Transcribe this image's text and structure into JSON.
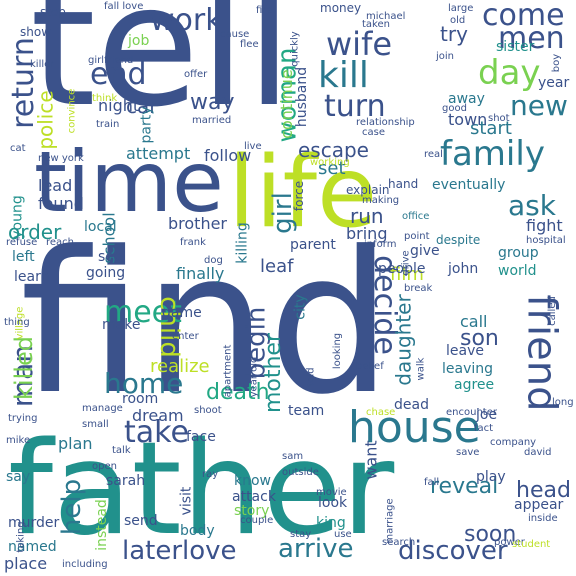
{
  "words": [
    {
      "text": "find",
      "color": "#3b528b"
    },
    {
      "text": "tell",
      "color": "#3b528b"
    },
    {
      "text": "father",
      "color": "#21918c"
    },
    {
      "text": "life",
      "color": "#bddf26"
    },
    {
      "text": "time",
      "color": "#3b528b"
    },
    {
      "text": "house",
      "color": "#2a788e"
    },
    {
      "text": "friend",
      "color": "#3b528b"
    },
    {
      "text": "family",
      "color": "#2a788e"
    },
    {
      "text": "kill",
      "color": "#2a788e"
    },
    {
      "text": "day",
      "color": "#7ad151"
    },
    {
      "text": "come",
      "color": "#3b528b"
    },
    {
      "text": "men",
      "color": "#3b528b"
    },
    {
      "text": "wife",
      "color": "#3b528b"
    },
    {
      "text": "work",
      "color": "#3b528b"
    },
    {
      "text": "end",
      "color": "#3b528b"
    },
    {
      "text": "new",
      "color": "#2a788e"
    },
    {
      "text": "turn",
      "color": "#3b528b"
    },
    {
      "text": "return",
      "color": "#3b528b"
    },
    {
      "text": "woman",
      "color": "#22a884"
    },
    {
      "text": "man",
      "color": "#3b528b"
    },
    {
      "text": "meet",
      "color": "#22a884"
    },
    {
      "text": "ask",
      "color": "#2a788e"
    },
    {
      "text": "take",
      "color": "#3b528b"
    },
    {
      "text": "decide",
      "color": "#3b528b"
    },
    {
      "text": "home",
      "color": "#2a788e"
    },
    {
      "text": "killed",
      "color": "#7ad151"
    },
    {
      "text": "child",
      "color": "#bddf26"
    },
    {
      "text": "girl",
      "color": "#2a788e"
    },
    {
      "text": "begin",
      "color": "#3b528b"
    },
    {
      "text": "help",
      "color": "#2a788e"
    },
    {
      "text": "discover",
      "color": "#3b528b"
    },
    {
      "text": "arrive",
      "color": "#2a788e"
    },
    {
      "text": "laterlove",
      "color": "#3b528b"
    },
    {
      "text": "mother",
      "color": "#21918c"
    },
    {
      "text": "police",
      "color": "#bddf26"
    },
    {
      "text": "car",
      "color": "#3b528b"
    },
    {
      "text": "way",
      "color": "#3b528b"
    },
    {
      "text": "escape",
      "color": "#3b528b"
    },
    {
      "text": "order",
      "color": "#21918c"
    },
    {
      "text": "daughter",
      "color": "#2a788e"
    },
    {
      "text": "son",
      "color": "#3b528b"
    },
    {
      "text": "death",
      "color": "#22a884"
    },
    {
      "text": "soon",
      "color": "#3b528b"
    },
    {
      "text": "reveal",
      "color": "#2a788e"
    },
    {
      "text": "head",
      "color": "#3b528b"
    },
    {
      "text": "start",
      "color": "#2a788e"
    },
    {
      "text": "try",
      "color": "#3b528b"
    },
    {
      "text": "film",
      "color": "#bddf26"
    },
    {
      "text": "night",
      "color": "#3b528b"
    },
    {
      "text": "run",
      "color": "#3b528b"
    },
    {
      "text": "set",
      "color": "#2a788e"
    },
    {
      "text": "bring",
      "color": "#3b528b"
    },
    {
      "text": "leaf",
      "color": "#3b528b"
    },
    {
      "text": "lead",
      "color": "#3b528b"
    },
    {
      "text": "found",
      "color": "#3b528b"
    },
    {
      "text": "school",
      "color": "#2a788e"
    },
    {
      "text": "brother",
      "color": "#3b528b"
    },
    {
      "text": "follow",
      "color": "#3b528b"
    },
    {
      "text": "attempt",
      "color": "#2a788e"
    },
    {
      "text": "party",
      "color": "#2a788e"
    },
    {
      "text": "job",
      "color": "#7ad151"
    },
    {
      "text": "continue",
      "color": "#7ad151"
    },
    {
      "text": "husband",
      "color": "#3b528b"
    },
    {
      "text": "town",
      "color": "#3b528b"
    },
    {
      "text": "away",
      "color": "#2a788e"
    },
    {
      "text": "sister",
      "color": "#21918c"
    },
    {
      "text": "year",
      "color": "#3b528b"
    },
    {
      "text": "eventually",
      "color": "#2a788e"
    },
    {
      "text": "fight",
      "color": "#3b528b"
    },
    {
      "text": "group",
      "color": "#2a788e"
    },
    {
      "text": "world",
      "color": "#21918c"
    },
    {
      "text": "john",
      "color": "#3b528b"
    },
    {
      "text": "people",
      "color": "#3b528b"
    },
    {
      "text": "give",
      "color": "#3b528b"
    },
    {
      "text": "parent",
      "color": "#3b528b"
    },
    {
      "text": "city",
      "color": "#2a788e"
    },
    {
      "text": "killing",
      "color": "#2a788e"
    },
    {
      "text": "finally",
      "color": "#2a788e"
    },
    {
      "text": "going",
      "color": "#3b528b"
    },
    {
      "text": "see",
      "color": "#3b528b"
    },
    {
      "text": "local",
      "color": "#2a788e"
    },
    {
      "text": "learn",
      "color": "#3b528b"
    },
    {
      "text": "left",
      "color": "#2a788e"
    },
    {
      "text": "young",
      "color": "#21918c"
    },
    {
      "text": "game",
      "color": "#3b528b"
    },
    {
      "text": "make",
      "color": "#3b528b"
    },
    {
      "text": "realize",
      "color": "#bddf26"
    },
    {
      "text": "room",
      "color": "#3b528b"
    },
    {
      "text": "dream",
      "color": "#3b528b"
    },
    {
      "text": "face",
      "color": "#3b528b"
    },
    {
      "text": "plan",
      "color": "#2a788e"
    },
    {
      "text": "team",
      "color": "#3b528b"
    },
    {
      "text": "dead",
      "color": "#3b528b"
    },
    {
      "text": "joe",
      "color": "#3b528b"
    },
    {
      "text": "call",
      "color": "#2a788e"
    },
    {
      "text": "leave",
      "color": "#3b528b"
    },
    {
      "text": "leaving",
      "color": "#2a788e"
    },
    {
      "text": "agree",
      "color": "#21918c"
    },
    {
      "text": "want",
      "color": "#3b528b"
    },
    {
      "text": "play",
      "color": "#3b528b"
    },
    {
      "text": "appear",
      "color": "#3b528b"
    },
    {
      "text": "sarah",
      "color": "#3b528b"
    },
    {
      "text": "say",
      "color": "#2a788e"
    },
    {
      "text": "murder",
      "color": "#3b528b"
    },
    {
      "text": "named",
      "color": "#2a788e"
    },
    {
      "text": "place",
      "color": "#3b528b"
    },
    {
      "text": "instead",
      "color": "#7ad151"
    },
    {
      "text": "visit",
      "color": "#3b528b"
    },
    {
      "text": "body",
      "color": "#2a788e"
    },
    {
      "text": "send",
      "color": "#3b528b"
    },
    {
      "text": "attack",
      "color": "#3b528b"
    },
    {
      "text": "know",
      "color": "#2a788e"
    },
    {
      "text": "story",
      "color": "#7ad151"
    },
    {
      "text": "king",
      "color": "#21918c"
    },
    {
      "text": "look",
      "color": "#3b528b"
    },
    {
      "text": "stop",
      "color": "#3b528b"
    },
    {
      "text": "show",
      "color": "#3b528b"
    },
    {
      "text": "money",
      "color": "#3b528b"
    },
    {
      "text": "force",
      "color": "#3b528b"
    },
    {
      "text": "hand",
      "color": "#3b528b"
    },
    {
      "text": "explain",
      "color": "#3b528b"
    },
    {
      "text": "making",
      "color": "#3b528b"
    },
    {
      "text": "working",
      "color": "#bddf26"
    },
    {
      "text": "inform",
      "color": "#3b528b"
    },
    {
      "text": "office",
      "color": "#2a788e"
    },
    {
      "text": "point",
      "color": "#3b528b"
    },
    {
      "text": "despite",
      "color": "#2a788e"
    },
    {
      "text": "hospital",
      "color": "#3b528b"
    },
    {
      "text": "break",
      "color": "#3b528b"
    },
    {
      "text": "called",
      "color": "#3b528b"
    },
    {
      "text": "long",
      "color": "#3b528b"
    },
    {
      "text": "fact",
      "color": "#3b528b"
    },
    {
      "text": "company",
      "color": "#3b528b"
    },
    {
      "text": "save",
      "color": "#3b528b"
    },
    {
      "text": "fall",
      "color": "#3b528b"
    },
    {
      "text": "david",
      "color": "#3b528b"
    },
    {
      "text": "inside",
      "color": "#3b528b"
    },
    {
      "text": "power",
      "color": "#3b528b"
    },
    {
      "text": "student",
      "color": "#bddf26"
    },
    {
      "text": "search",
      "color": "#3b528b"
    },
    {
      "text": "marriage",
      "color": "#3b528b"
    },
    {
      "text": "use",
      "color": "#3b528b"
    },
    {
      "text": "stay",
      "color": "#3b528b"
    },
    {
      "text": "couple",
      "color": "#3b528b"
    },
    {
      "text": "movie",
      "color": "#3b528b"
    },
    {
      "text": "outside",
      "color": "#3b528b"
    },
    {
      "text": "sam",
      "color": "#3b528b"
    },
    {
      "text": "ray",
      "color": "#3b528b"
    },
    {
      "text": "open",
      "color": "#3b528b"
    },
    {
      "text": "talk",
      "color": "#3b528b"
    },
    {
      "text": "taking",
      "color": "#3b528b"
    },
    {
      "text": "including",
      "color": "#3b528b"
    },
    {
      "text": "mike",
      "color": "#3b528b"
    },
    {
      "text": "trying",
      "color": "#3b528b"
    },
    {
      "text": "manage",
      "color": "#3b528b"
    },
    {
      "text": "small",
      "color": "#3b528b"
    },
    {
      "text": "shoot",
      "color": "#3b528b"
    },
    {
      "text": "apartment",
      "color": "#3b528b"
    },
    {
      "text": "year old",
      "color": "#3b528b"
    },
    {
      "text": "told",
      "color": "#3b528b"
    },
    {
      "text": "looking",
      "color": "#3b528b"
    },
    {
      "text": "belief",
      "color": "#3b528b"
    },
    {
      "text": "encounter",
      "color": "#3b528b"
    },
    {
      "text": "chase",
      "color": "#bddf26"
    },
    {
      "text": "walk",
      "color": "#3b528b"
    },
    {
      "text": "drive",
      "color": "#3b528b"
    },
    {
      "text": "enter",
      "color": "#3b528b"
    },
    {
      "text": "dog",
      "color": "#3b528b"
    },
    {
      "text": "frank",
      "color": "#3b528b"
    },
    {
      "text": "reach",
      "color": "#3b528b"
    },
    {
      "text": "refuse",
      "color": "#3b528b"
    },
    {
      "text": "village",
      "color": "#bddf26"
    },
    {
      "text": "thing",
      "color": "#3b528b"
    },
    {
      "text": "new york",
      "color": "#3b528b"
    },
    {
      "text": "cat",
      "color": "#3b528b"
    },
    {
      "text": "train",
      "color": "#3b528b"
    },
    {
      "text": "convince",
      "color": "#bddf26"
    },
    {
      "text": "think",
      "color": "#bddf26"
    },
    {
      "text": "girlfriend",
      "color": "#3b528b"
    },
    {
      "text": "killer",
      "color": "#3b528b"
    },
    {
      "text": "offer",
      "color": "#3b528b"
    },
    {
      "text": "married",
      "color": "#3b528b"
    },
    {
      "text": "live",
      "color": "#3b528b"
    },
    {
      "text": "cause",
      "color": "#3b528b"
    },
    {
      "text": "flee",
      "color": "#3b528b"
    },
    {
      "text": "fire",
      "color": "#3b528b"
    },
    {
      "text": "quickly",
      "color": "#3b528b"
    },
    {
      "text": "taken",
      "color": "#3b528b"
    },
    {
      "text": "michael",
      "color": "#3b528b"
    },
    {
      "text": "join",
      "color": "#3b528b"
    },
    {
      "text": "old",
      "color": "#3b528b"
    },
    {
      "text": "large",
      "color": "#3b528b"
    },
    {
      "text": "good",
      "color": "#3b528b"
    },
    {
      "text": "boy",
      "color": "#3b528b"
    },
    {
      "text": "case",
      "color": "#3b528b"
    },
    {
      "text": "relationship",
      "color": "#3b528b"
    },
    {
      "text": "shot",
      "color": "#3b528b"
    },
    {
      "text": "real",
      "color": "#3b528b"
    },
    {
      "text": "fall love",
      "color": "#3b528b"
    }
  ]
}
